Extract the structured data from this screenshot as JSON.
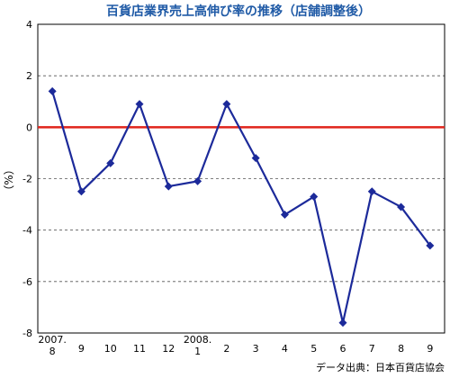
{
  "chart_data": {
    "type": "line",
    "title": "百貨店業界売上高伸び率の推移（店舗調整後）",
    "ylabel": "（%）",
    "ylim": [
      -8,
      4
    ],
    "yticks": [
      4,
      2,
      0,
      -2,
      -4,
      -6,
      -8
    ],
    "grid": "horizontal-dashed",
    "categories": [
      "2007.\n8",
      "9",
      "10",
      "11",
      "12",
      "2008.\n1",
      "2",
      "3",
      "4",
      "5",
      "6",
      "7",
      "8",
      "9"
    ],
    "series": [
      {
        "values": [
          1.4,
          -2.5,
          -1.4,
          0.9,
          -2.3,
          -2.1,
          0.9,
          -1.2,
          -3.4,
          -2.7,
          -7.6,
          -2.5,
          -3.1,
          -4.6
        ],
        "color": "#1c2a9a"
      }
    ],
    "reference_line": {
      "y": 0,
      "color": "#e0241b"
    },
    "source": "データ出典：日本百貨店協会"
  }
}
